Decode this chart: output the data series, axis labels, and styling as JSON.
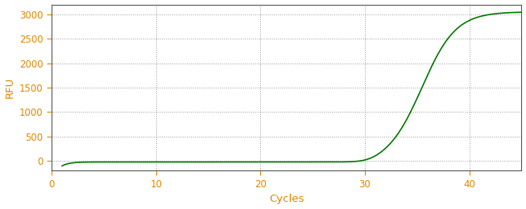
{
  "xlabel": "Cycles",
  "ylabel": "RFU",
  "xlim": [
    0,
    45
  ],
  "ylim": [
    -200,
    3200
  ],
  "yticks": [
    0,
    500,
    1000,
    1500,
    2000,
    2500,
    3000
  ],
  "xticks": [
    0,
    10,
    20,
    30,
    40
  ],
  "line_color": "#007700",
  "background_color": "#ffffff",
  "grid_color": "#999999",
  "label_color": "#dd8800",
  "tick_color": "#333333",
  "spine_color": "#555555",
  "sigmoid_L": 3050,
  "sigmoid_k": 0.62,
  "sigmoid_x0": 35.5,
  "x_start": 1,
  "x_end": 45,
  "figsize": [
    6.53,
    2.6
  ],
  "dpi": 100
}
